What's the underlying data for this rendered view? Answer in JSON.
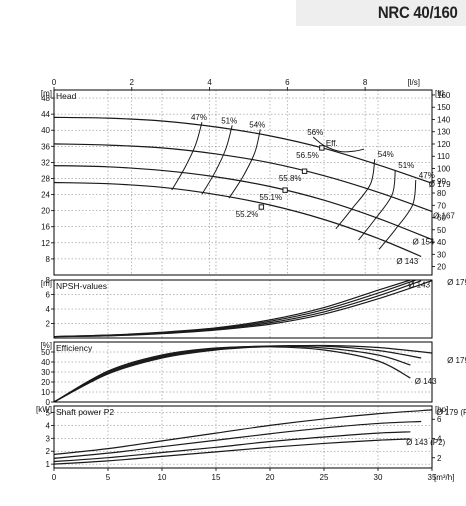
{
  "model": "NRC 40/160",
  "colors": {
    "curve": "#1a1a1a",
    "grid": "#777777",
    "frame": "#000000",
    "title_band": "#eeeeee"
  },
  "chart_data": {
    "type": "line",
    "x_axis_bottom": {
      "unit": "[m³/h]",
      "range": [
        0,
        35
      ],
      "ticks": [
        0,
        5,
        10,
        15,
        20,
        25,
        30,
        35
      ]
    },
    "x_axis_top": {
      "unit": "[l/s]",
      "range": [
        0,
        9.72
      ],
      "ticks": [
        0,
        2,
        4,
        6,
        8
      ]
    },
    "panels": [
      {
        "id": "head",
        "label": "Head",
        "left_unit": "[m]",
        "right_unit": "[ft]",
        "ylim": [
          4,
          50
        ],
        "left_ticks": [
          8,
          12,
          16,
          20,
          24,
          28,
          32,
          36,
          40,
          44,
          48
        ],
        "right_ticks": [
          20,
          30,
          40,
          50,
          60,
          70,
          80,
          90,
          100,
          110,
          120,
          130,
          140,
          150,
          160
        ],
        "right_factor": 3.2808,
        "series": [
          {
            "name": "Ø 179",
            "x": [
              0,
              5,
              10,
              15,
              20,
              25,
              30,
              35
            ],
            "y": [
              43.2,
              43,
              42.3,
              40.8,
              38.6,
              35.5,
              31.4,
              26.8
            ]
          },
          {
            "name": "Ø 167",
            "x": [
              0,
              5,
              10,
              15,
              20,
              25,
              30,
              35
            ],
            "y": [
              36.6,
              36.3,
              35.6,
              34.1,
              31.9,
              28.7,
              24.6,
              19.8
            ]
          },
          {
            "name": "Ø 154",
            "x": [
              0,
              5,
              10,
              15,
              20,
              25,
              30,
              35
            ],
            "y": [
              31.2,
              30.9,
              30,
              28.4,
              26,
              22.6,
              18.1,
              12.8
            ]
          },
          {
            "name": "Ø 143",
            "x": [
              0,
              5,
              10,
              15,
              20,
              25,
              30,
              34
            ],
            "y": [
              27,
              26.7,
              25.8,
              24,
              21.4,
              17.8,
              13.1,
              8.6
            ]
          }
        ],
        "efficiency_lines": [
          {
            "label": "47%",
            "x": [
              13.7,
              13.1,
              12.1,
              10.9
            ],
            "y": [
              42,
              36.3,
              30.6,
              25.1
            ]
          },
          {
            "label": "51%",
            "x": [
              16.5,
              15.9,
              14.9,
              13.7
            ],
            "y": [
              41.2,
              35.3,
              29.5,
              24.1
            ]
          },
          {
            "label": "54%",
            "x": [
              19.1,
              18.6,
              17.5,
              16.2
            ],
            "y": [
              40.2,
              34.5,
              28.5,
              23.1
            ]
          },
          {
            "label": "54%",
            "x": [
              29.7,
              29.3,
              27.6,
              26.1
            ],
            "y": [
              32.8,
              26.6,
              20.5,
              15.5
            ]
          },
          {
            "label": "51%",
            "x": [
              31.6,
              31.3,
              29.7,
              28.2
            ],
            "y": [
              30.1,
              23.9,
              17.8,
              12.7
            ]
          },
          {
            "label": "47%",
            "x": [
              33.5,
              33.2,
              31.6,
              30.1
            ],
            "y": [
              27.6,
              21.4,
              15.3,
              10.4
            ]
          }
        ],
        "efficiency_ring": {
          "label": "56%",
          "x": [
            24,
            25,
            26.5,
            27.8,
            28.7
          ],
          "y": [
            38.3,
            36.2,
            34.7,
            34.8,
            35.3
          ]
        },
        "bep_points": [
          {
            "label": "56.5%",
            "x": 24.8,
            "y": 35.6
          },
          {
            "label": "55.8%",
            "x": 23.2,
            "y": 29.8
          },
          {
            "label": "55.1%",
            "x": 21.4,
            "y": 25.1
          },
          {
            "label": "55.2%",
            "x": 19.2,
            "y": 20.9
          }
        ],
        "eff_tag": "Eff.",
        "eff_tag_point": {
          "x": 24.8,
          "y": 35.6
        }
      },
      {
        "id": "npsh",
        "label": "NPSH-values",
        "left_unit": "[m]",
        "right_unit": "",
        "ylim": [
          0,
          8
        ],
        "left_ticks": [
          2,
          4,
          6,
          8
        ],
        "series": [
          {
            "name": "Ø 179",
            "x": [
              0,
              5,
              10,
              15,
              20,
              25,
              30,
              35
            ],
            "y": [
              0.2,
              0.3,
              0.6,
              1.1,
              1.9,
              3.3,
              5.4,
              7.9
            ]
          },
          {
            "name": "Ø 167",
            "x": [
              0,
              5,
              10,
              15,
              20,
              25,
              30,
              34
            ],
            "y": [
              0.2,
              0.3,
              0.7,
              1.2,
              2.1,
              3.6,
              5.8,
              7.9
            ]
          },
          {
            "name": "Ø 154",
            "x": [
              0,
              5,
              10,
              15,
              20,
              25,
              30,
              33.5
            ],
            "y": [
              0.2,
              0.4,
              0.7,
              1.3,
              2.3,
              3.9,
              6.2,
              8
            ]
          },
          {
            "name": "Ø 143",
            "x": [
              0,
              5,
              10,
              15,
              20,
              25,
              30,
              33
            ],
            "y": [
              0.2,
              0.4,
              0.8,
              1.4,
              2.5,
              4.2,
              6.6,
              8
            ]
          }
        ]
      },
      {
        "id": "efficiency",
        "label": "Efficiency",
        "left_unit": "[%]",
        "right_unit": "",
        "ylim": [
          0,
          60
        ],
        "left_ticks": [
          0,
          10,
          20,
          30,
          40,
          50
        ],
        "series": [
          {
            "name": "Ø 179",
            "x": [
              0,
              5,
              10,
              15,
              20,
              25,
              30,
              35
            ],
            "y": [
              0,
              28,
              44,
              52,
              55.5,
              56.5,
              54.5,
              49
            ]
          },
          {
            "name": "Ø 167",
            "x": [
              0,
              5,
              10,
              15,
              20,
              25,
              30,
              34
            ],
            "y": [
              0,
              29,
              45,
              53,
              56,
              55.8,
              51.5,
              44
            ]
          },
          {
            "name": "Ø 154",
            "x": [
              0,
              5,
              10,
              15,
              20,
              25,
              30,
              33
            ],
            "y": [
              0,
              30,
              46,
              53.5,
              55.8,
              54,
              47,
              37
            ]
          },
          {
            "name": "Ø 143",
            "x": [
              0,
              5,
              10,
              15,
              20,
              25,
              30,
              33
            ],
            "y": [
              0,
              31,
              47,
              54,
              55.2,
              52,
              41,
              24
            ]
          }
        ]
      },
      {
        "id": "power",
        "label": "Shaft power P2",
        "left_unit": "[kW]",
        "right_unit": "[hp]",
        "ylim": [
          0.7,
          5.5
        ],
        "left_ticks": [
          1,
          2,
          3,
          4,
          5
        ],
        "right_ticks": [
          2,
          4,
          6
        ],
        "right_factor": 1.341,
        "series": [
          {
            "name": "Ø 179 (P2)",
            "x": [
              0,
              5,
              10,
              15,
              20,
              25,
              30,
              35
            ],
            "y": [
              1.75,
              2.2,
              2.8,
              3.4,
              4.0,
              4.5,
              4.9,
              5.2
            ]
          },
          {
            "name": "Ø 167",
            "x": [
              0,
              5,
              10,
              15,
              20,
              25,
              30,
              34
            ],
            "y": [
              1.45,
              1.85,
              2.35,
              2.85,
              3.35,
              3.8,
              4.15,
              4.3
            ]
          },
          {
            "name": "Ø 154",
            "x": [
              0,
              5,
              10,
              15,
              20,
              25,
              30,
              33
            ],
            "y": [
              1.2,
              1.5,
              1.9,
              2.3,
              2.75,
              3.1,
              3.4,
              3.5
            ]
          },
          {
            "name": "Ø 143 (P2)",
            "x": [
              0,
              5,
              10,
              15,
              20,
              25,
              30,
              33
            ],
            "y": [
              1.0,
              1.25,
              1.6,
              1.95,
              2.3,
              2.6,
              2.85,
              2.95
            ]
          }
        ]
      }
    ],
    "curve_labels": [
      {
        "panel": "head",
        "text": "Ø 179",
        "x": 34.7,
        "y": 26.6
      },
      {
        "panel": "head",
        "text": "Ø 167",
        "x": 35.1,
        "y": 18.8
      },
      {
        "panel": "head",
        "text": "Ø 154",
        "x": 33.2,
        "y": 12.3
      },
      {
        "panel": "head",
        "text": "Ø 143",
        "x": 31.7,
        "y": 7.5
      },
      {
        "panel": "npsh",
        "text": "Ø 143",
        "x": 32.8,
        "y": 7.4
      },
      {
        "panel": "npsh",
        "text": "Ø 179",
        "x": 36.4,
        "y": 7.7
      },
      {
        "panel": "efficiency",
        "text": "Ø 179",
        "x": 36.4,
        "y": 42
      },
      {
        "panel": "efficiency",
        "text": "Ø 143",
        "x": 33.4,
        "y": 21
      },
      {
        "panel": "power",
        "text": "Ø 179 (P2)",
        "x": 35.4,
        "y": 5.05
      },
      {
        "panel": "power",
        "text": "Ø 143 (P2)",
        "x": 32.6,
        "y": 2.7
      }
    ]
  }
}
